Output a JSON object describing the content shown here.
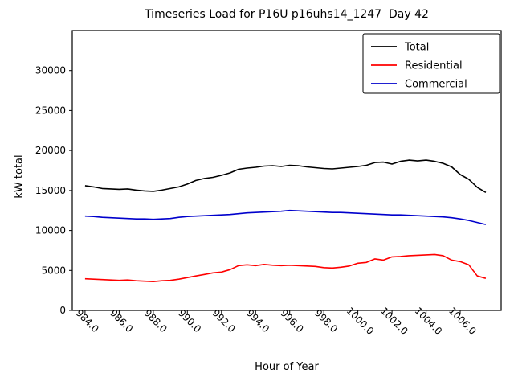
{
  "figure": {
    "title": "Timeseries Load for P16U p16uhs14_1247  Day 42",
    "xlabel": "Hour of Year",
    "ylabel": "kW total"
  },
  "chart_data": {
    "type": "line",
    "title": "Timeseries Load for P16U p16uhs14_1247  Day 42",
    "xlabel": "Hour of Year",
    "ylabel": "kW total",
    "grid": false,
    "xlim": [
      983.25,
      1008.4
    ],
    "ylim": [
      0,
      35000
    ],
    "xticks": [
      984,
      986,
      988,
      990,
      992,
      994,
      996,
      998,
      1000,
      1002,
      1004,
      1006
    ],
    "xtick_labels": [
      "984.0",
      "986.0",
      "988.0",
      "990.0",
      "992.0",
      "994.0",
      "996.0",
      "998.0",
      "1000.0",
      "1002.0",
      "1004.0",
      "1006.0"
    ],
    "yticks": [
      0,
      5000,
      10000,
      15000,
      20000,
      25000,
      30000
    ],
    "legend": {
      "position": "upper right",
      "entries": [
        {
          "label": "Total",
          "color": "#000000"
        },
        {
          "label": "Residential",
          "color": "#ff0000"
        },
        {
          "label": "Commercial",
          "color": "#0000cc"
        }
      ]
    },
    "x": [
      984.0,
      984.5,
      985.0,
      985.5,
      986.0,
      986.5,
      987.0,
      987.5,
      988.0,
      988.5,
      989.0,
      989.5,
      990.0,
      990.5,
      991.0,
      991.5,
      992.0,
      992.5,
      993.0,
      993.5,
      994.0,
      994.5,
      995.0,
      995.5,
      996.0,
      996.5,
      997.0,
      997.5,
      998.0,
      998.5,
      999.0,
      999.5,
      1000.0,
      1000.5,
      1001.0,
      1001.5,
      1002.0,
      1002.5,
      1003.0,
      1003.5,
      1004.0,
      1004.5,
      1005.0,
      1005.5,
      1006.0,
      1006.5,
      1007.0,
      1007.5
    ],
    "series": [
      {
        "name": "Total",
        "color": "#000000",
        "values": [
          15600,
          15450,
          15250,
          15200,
          15150,
          15200,
          15050,
          14950,
          14900,
          15050,
          15250,
          15450,
          15800,
          16250,
          16500,
          16650,
          16900,
          17200,
          17650,
          17800,
          17900,
          18050,
          18100,
          18000,
          18150,
          18100,
          17950,
          17850,
          17750,
          17700,
          17800,
          17900,
          18000,
          18150,
          18500,
          18550,
          18300,
          18650,
          18800,
          18700,
          18800,
          18650,
          18400,
          17950,
          17000,
          16400,
          15400,
          14750
        ]
      },
      {
        "name": "Residential",
        "color": "#ff0000",
        "values": [
          3950,
          3900,
          3850,
          3800,
          3750,
          3800,
          3700,
          3650,
          3600,
          3700,
          3750,
          3900,
          4100,
          4300,
          4500,
          4700,
          4800,
          5100,
          5600,
          5700,
          5600,
          5750,
          5650,
          5600,
          5650,
          5600,
          5550,
          5500,
          5350,
          5300,
          5400,
          5550,
          5900,
          6000,
          6450,
          6300,
          6700,
          6750,
          6850,
          6900,
          6950,
          7000,
          6850,
          6300,
          6100,
          5700,
          4300,
          4000
        ]
      },
      {
        "name": "Commercial",
        "color": "#0000cc",
        "values": [
          11800,
          11750,
          11650,
          11600,
          11550,
          11500,
          11450,
          11450,
          11400,
          11450,
          11500,
          11650,
          11750,
          11800,
          11850,
          11900,
          11950,
          12000,
          12100,
          12200,
          12250,
          12300,
          12350,
          12400,
          12500,
          12450,
          12400,
          12350,
          12300,
          12250,
          12250,
          12200,
          12150,
          12100,
          12050,
          12000,
          11950,
          11950,
          11900,
          11850,
          11800,
          11750,
          11700,
          11600,
          11450,
          11250,
          11000,
          10750
        ]
      }
    ]
  }
}
